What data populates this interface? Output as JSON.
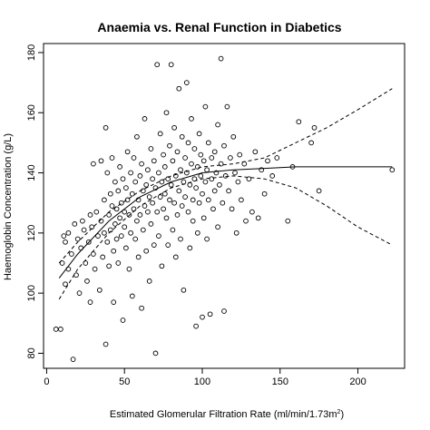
{
  "chart_data": {
    "type": "scatter",
    "title": "Anaemia vs. Renal Function in Diabetics",
    "xlabel": "Estimated Glomerular Filtration Rate (ml/min/1.73m",
    "xlabel_superscript": "2",
    "xlabel_close": ")",
    "ylabel": "Haemoglobin Concentration (g/L)",
    "xlim": [
      -2,
      230
    ],
    "ylim": [
      75,
      183
    ],
    "xticks": [
      0,
      50,
      100,
      150,
      200
    ],
    "yticks": [
      80,
      100,
      120,
      140,
      160,
      180
    ],
    "grid": false,
    "legend": "none",
    "marker": "open-circle",
    "points": [
      [
        6,
        88
      ],
      [
        9,
        88
      ],
      [
        10,
        110
      ],
      [
        11,
        119
      ],
      [
        12,
        117
      ],
      [
        12,
        103
      ],
      [
        14,
        108
      ],
      [
        14,
        120
      ],
      [
        16,
        113
      ],
      [
        17,
        78
      ],
      [
        18,
        123
      ],
      [
        19,
        106
      ],
      [
        20,
        118
      ],
      [
        21,
        100
      ],
      [
        22,
        115
      ],
      [
        23,
        124
      ],
      [
        24,
        121
      ],
      [
        25,
        110
      ],
      [
        26,
        104
      ],
      [
        27,
        117
      ],
      [
        28,
        126
      ],
      [
        28,
        97
      ],
      [
        29,
        122
      ],
      [
        30,
        113
      ],
      [
        30,
        143
      ],
      [
        31,
        108
      ],
      [
        32,
        127
      ],
      [
        33,
        119
      ],
      [
        34,
        101
      ],
      [
        35,
        124
      ],
      [
        35,
        144
      ],
      [
        36,
        112
      ],
      [
        37,
        131
      ],
      [
        37,
        120
      ],
      [
        38,
        155
      ],
      [
        38,
        83
      ],
      [
        39,
        140
      ],
      [
        39,
        117
      ],
      [
        40,
        126
      ],
      [
        40,
        109
      ],
      [
        41,
        133
      ],
      [
        41,
        121
      ],
      [
        42,
        129
      ],
      [
        42,
        145
      ],
      [
        43,
        114
      ],
      [
        43,
        97
      ],
      [
        44,
        137
      ],
      [
        44,
        123
      ],
      [
        45,
        118
      ],
      [
        45,
        128
      ],
      [
        46,
        134
      ],
      [
        46,
        110
      ],
      [
        47,
        125
      ],
      [
        47,
        142
      ],
      [
        48,
        130
      ],
      [
        48,
        119
      ],
      [
        49,
        138
      ],
      [
        49,
        91
      ],
      [
        50,
        127
      ],
      [
        50,
        122
      ],
      [
        51,
        135
      ],
      [
        51,
        115
      ],
      [
        52,
        147
      ],
      [
        52,
        131
      ],
      [
        53,
        126
      ],
      [
        53,
        108
      ],
      [
        54,
        140
      ],
      [
        54,
        120
      ],
      [
        55,
        133
      ],
      [
        55,
        99
      ],
      [
        56,
        128
      ],
      [
        56,
        145
      ],
      [
        57,
        137
      ],
      [
        57,
        118
      ],
      [
        58,
        124
      ],
      [
        58,
        152
      ],
      [
        59,
        131
      ],
      [
        59,
        112
      ],
      [
        60,
        139
      ],
      [
        60,
        126
      ],
      [
        61,
        143
      ],
      [
        61,
        95
      ],
      [
        62,
        134
      ],
      [
        62,
        121
      ],
      [
        63,
        158
      ],
      [
        63,
        129
      ],
      [
        64,
        136
      ],
      [
        64,
        114
      ],
      [
        65,
        141
      ],
      [
        65,
        127
      ],
      [
        66,
        132
      ],
      [
        66,
        104
      ],
      [
        67,
        148
      ],
      [
        67,
        123
      ],
      [
        68,
        138
      ],
      [
        68,
        130
      ],
      [
        69,
        144
      ],
      [
        69,
        116
      ],
      [
        70,
        135
      ],
      [
        70,
        80
      ],
      [
        71,
        176
      ],
      [
        71,
        127
      ],
      [
        72,
        140
      ],
      [
        72,
        119
      ],
      [
        73,
        153
      ],
      [
        73,
        132
      ],
      [
        74,
        137
      ],
      [
        74,
        109
      ],
      [
        75,
        146
      ],
      [
        75,
        128
      ],
      [
        76,
        133
      ],
      [
        76,
        142
      ],
      [
        77,
        125
      ],
      [
        77,
        160
      ],
      [
        78,
        138
      ],
      [
        78,
        116
      ],
      [
        79,
        149
      ],
      [
        79,
        131
      ],
      [
        80,
        176
      ],
      [
        80,
        136
      ],
      [
        81,
        144
      ],
      [
        81,
        121
      ],
      [
        82,
        130
      ],
      [
        82,
        155
      ],
      [
        83,
        139
      ],
      [
        83,
        112
      ],
      [
        84,
        147
      ],
      [
        84,
        126
      ],
      [
        85,
        134
      ],
      [
        85,
        168
      ],
      [
        86,
        141
      ],
      [
        86,
        118
      ],
      [
        87,
        152
      ],
      [
        87,
        129
      ],
      [
        88,
        137
      ],
      [
        88,
        101
      ],
      [
        89,
        145
      ],
      [
        89,
        132
      ],
      [
        90,
        170
      ],
      [
        90,
        140
      ],
      [
        91,
        127
      ],
      [
        91,
        150
      ],
      [
        92,
        136
      ],
      [
        92,
        115
      ],
      [
        93,
        143
      ],
      [
        93,
        158
      ],
      [
        94,
        131
      ],
      [
        94,
        124
      ],
      [
        95,
        148
      ],
      [
        95,
        138
      ],
      [
        96,
        89
      ],
      [
        96,
        135
      ],
      [
        97,
        142
      ],
      [
        97,
        120
      ],
      [
        98,
        153
      ],
      [
        98,
        130
      ],
      [
        99,
        139
      ],
      [
        99,
        146
      ],
      [
        100,
        133
      ],
      [
        100,
        92
      ],
      [
        101,
        144
      ],
      [
        101,
        125
      ],
      [
        102,
        137
      ],
      [
        102,
        162
      ],
      [
        103,
        141
      ],
      [
        103,
        118
      ],
      [
        104,
        150
      ],
      [
        104,
        131
      ],
      [
        105,
        93
      ],
      [
        106,
        138
      ],
      [
        106,
        145
      ],
      [
        107,
        128
      ],
      [
        108,
        147
      ],
      [
        108,
        134
      ],
      [
        109,
        140
      ],
      [
        110,
        156
      ],
      [
        110,
        122
      ],
      [
        111,
        136
      ],
      [
        112,
        178
      ],
      [
        112,
        143
      ],
      [
        113,
        130
      ],
      [
        114,
        149
      ],
      [
        114,
        94
      ],
      [
        115,
        139
      ],
      [
        116,
        162
      ],
      [
        117,
        134
      ],
      [
        118,
        145
      ],
      [
        119,
        128
      ],
      [
        120,
        152
      ],
      [
        121,
        140
      ],
      [
        122,
        120
      ],
      [
        123,
        137
      ],
      [
        124,
        146
      ],
      [
        125,
        131
      ],
      [
        127,
        143
      ],
      [
        128,
        124
      ],
      [
        130,
        138
      ],
      [
        132,
        127
      ],
      [
        134,
        147
      ],
      [
        136,
        125
      ],
      [
        138,
        141
      ],
      [
        140,
        133
      ],
      [
        142,
        144
      ],
      [
        145,
        139
      ],
      [
        148,
        145
      ],
      [
        155,
        124
      ],
      [
        158,
        142
      ],
      [
        162,
        157
      ],
      [
        170,
        150
      ],
      [
        172,
        155
      ],
      [
        175,
        134
      ],
      [
        222,
        141
      ]
    ],
    "fit_line": {
      "x": [
        8,
        20,
        40,
        60,
        80,
        100,
        120,
        140,
        160,
        180,
        200,
        222
      ],
      "y": [
        105,
        113,
        124,
        132,
        137,
        140,
        141,
        141.5,
        142,
        142,
        142,
        142
      ]
    },
    "ci_upper": {
      "x": [
        8,
        20,
        40,
        60,
        80,
        100,
        120,
        140,
        160,
        180,
        200,
        222
      ],
      "y": [
        110,
        117,
        127,
        134,
        139,
        142,
        143,
        145,
        150,
        155,
        161,
        168
      ]
    },
    "ci_lower": {
      "x": [
        8,
        20,
        40,
        60,
        80,
        100,
        120,
        140,
        160,
        180,
        200,
        222
      ],
      "y": [
        98,
        108,
        120,
        129,
        135,
        138,
        139,
        138,
        135,
        129,
        122,
        116
      ]
    }
  }
}
